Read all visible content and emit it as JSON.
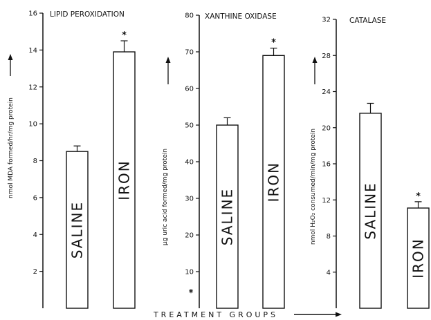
{
  "chart_data": [
    {
      "type": "bar",
      "title": "LIPID PEROXIDATION",
      "ylabel": "nmol MDA formed/hr/mg protein",
      "ylim": [
        0,
        16
      ],
      "yticks": [
        "2",
        "4",
        "6",
        "8",
        "10",
        "12",
        "14",
        "16"
      ],
      "categories": [
        "SALINE",
        "IRON"
      ],
      "values": [
        8.5,
        13.9
      ],
      "errors": [
        0.3,
        0.6
      ],
      "significance": [
        "",
        "*"
      ]
    },
    {
      "type": "bar",
      "title": "XANTHINE OXIDASE",
      "ylabel": "µg uric acid formed/mg protein",
      "ylim": [
        0,
        80
      ],
      "yticks": [
        "10",
        "20",
        "30",
        "40",
        "50",
        "60",
        "70",
        "80"
      ],
      "categories": [
        "SALINE",
        "IRON"
      ],
      "values": [
        50,
        69
      ],
      "errors": [
        2,
        2
      ],
      "significance": [
        "",
        "*"
      ]
    },
    {
      "type": "bar",
      "title": "CATALASE",
      "ylabel": "nmol H₂O₂ consumed/min/mg protein",
      "ylim": [
        0,
        32
      ],
      "yticks": [
        "4",
        "8",
        "12",
        "16",
        "20",
        "24",
        "28",
        "32"
      ],
      "categories": [
        "SALINE",
        "IRON"
      ],
      "values": [
        21.6,
        11.1
      ],
      "errors": [
        1.1,
        0.7
      ],
      "significance": [
        "",
        "*"
      ]
    }
  ],
  "x_axis_label": "TREATMENT GROUPS",
  "footnote_mark": "*"
}
